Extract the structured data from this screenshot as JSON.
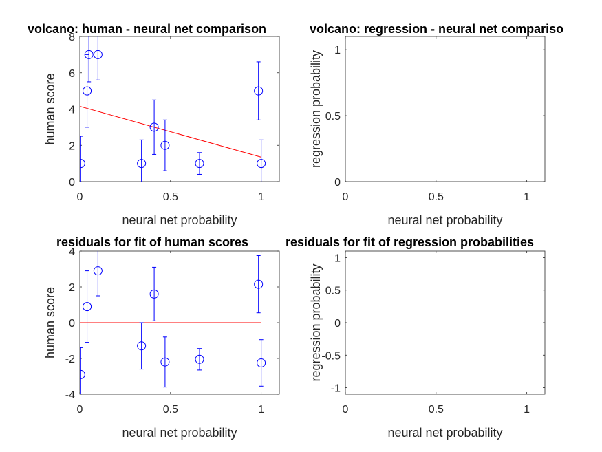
{
  "chart_data": [
    {
      "type": "scatter",
      "title": "volcano: human - neural net comparison",
      "xlabel": "neural net probability",
      "ylabel": "human score",
      "xlim": [
        0,
        1.1
      ],
      "ylim": [
        0,
        8
      ],
      "xticks": [
        0,
        0.5,
        1
      ],
      "xtick_labels": [
        "0",
        "0.5",
        "1"
      ],
      "yticks": [
        0,
        2,
        4,
        6,
        8
      ],
      "ytick_labels": [
        "0",
        "2",
        "4",
        "6",
        "8"
      ],
      "grid": false,
      "points": [
        {
          "x": 0.005,
          "y": 1.0,
          "err": 1.5
        },
        {
          "x": 0.04,
          "y": 5.0,
          "err": 2.0
        },
        {
          "x": 0.05,
          "y": 7.0,
          "err": 1.5
        },
        {
          "x": 0.1,
          "y": 7.0,
          "err": 1.4
        },
        {
          "x": 0.34,
          "y": 1.0,
          "err": 1.3
        },
        {
          "x": 0.41,
          "y": 3.0,
          "err": 1.5
        },
        {
          "x": 0.47,
          "y": 2.0,
          "err": 1.4
        },
        {
          "x": 0.66,
          "y": 1.0,
          "err": 0.6
        },
        {
          "x": 0.985,
          "y": 5.0,
          "err": 1.6
        },
        {
          "x": 1.0,
          "y": 1.0,
          "err": 1.3
        }
      ],
      "fit_line": {
        "x": [
          0,
          1.0
        ],
        "y": [
          4.15,
          1.35
        ]
      },
      "marker_color": "#0000ff",
      "line_color": "#ff0000"
    },
    {
      "type": "scatter",
      "title": "volcano: regression - neural net compariso",
      "xlabel": "neural net probability",
      "ylabel": "regression probability",
      "xlim": [
        0,
        1.1
      ],
      "ylim": [
        0,
        1.1
      ],
      "xticks": [
        0,
        0.5,
        1
      ],
      "xtick_labels": [
        "0",
        "0.5",
        "1"
      ],
      "yticks": [
        0,
        0.5,
        1
      ],
      "ytick_labels": [
        "0",
        "0.5",
        "1"
      ],
      "grid": false,
      "points": []
    },
    {
      "type": "scatter",
      "title": "residuals for fit of human scores",
      "xlabel": "neural net probability",
      "ylabel": "human score",
      "xlim": [
        0,
        1.1
      ],
      "ylim": [
        -4,
        4
      ],
      "xticks": [
        0,
        0.5,
        1
      ],
      "xtick_labels": [
        "0",
        "0.5",
        "1"
      ],
      "yticks": [
        -4,
        -2,
        0,
        2,
        4
      ],
      "ytick_labels": [
        "-4",
        "-2",
        "0",
        "2",
        "4"
      ],
      "grid": false,
      "points": [
        {
          "x": 0.005,
          "y": -2.9,
          "err": 1.5
        },
        {
          "x": 0.04,
          "y": 0.9,
          "err": 2.0
        },
        {
          "x": 0.1,
          "y": 2.9,
          "err": 1.4
        },
        {
          "x": 0.34,
          "y": -1.3,
          "err": 1.3
        },
        {
          "x": 0.41,
          "y": 1.6,
          "err": 1.5
        },
        {
          "x": 0.47,
          "y": -2.2,
          "err": 1.4
        },
        {
          "x": 0.66,
          "y": -2.05,
          "err": 0.6
        },
        {
          "x": 0.985,
          "y": 2.15,
          "err": 1.6
        },
        {
          "x": 1.0,
          "y": -2.25,
          "err": 1.3
        }
      ],
      "fit_line": {
        "x": [
          0,
          1.0
        ],
        "y": [
          0,
          0
        ]
      },
      "marker_color": "#0000ff",
      "line_color": "#ff0000"
    },
    {
      "type": "scatter",
      "title": "residuals for fit of regression probabilities",
      "xlabel": "neural net probability",
      "ylabel": "regression probability",
      "xlim": [
        0,
        1.1
      ],
      "ylim": [
        -1.1,
        1.1
      ],
      "xticks": [
        0,
        0.5,
        1
      ],
      "xtick_labels": [
        "0",
        "0.5",
        "1"
      ],
      "yticks": [
        -1,
        -0.5,
        0,
        0.5,
        1
      ],
      "ytick_labels": [
        "-1",
        "-0.5",
        "0",
        "0.5",
        "1"
      ],
      "grid": false,
      "points": []
    }
  ]
}
